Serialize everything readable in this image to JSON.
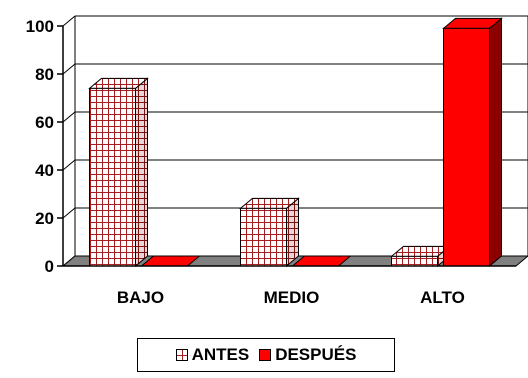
{
  "chart_data": {
    "type": "bar",
    "categories": [
      "BAJO",
      "MEDIO",
      "ALTO"
    ],
    "series": [
      {
        "name": "ANTES",
        "values": [
          74,
          24,
          4
        ],
        "color": "#ffffff",
        "pattern": "grid",
        "pattern_color": "#a81e1e"
      },
      {
        "name": "DESPUÉS",
        "values": [
          0,
          0,
          99
        ],
        "color": "#ff0000",
        "side_color": "#8b0000"
      }
    ],
    "yticks": [
      "0",
      "20",
      "40",
      "60",
      "80",
      "100"
    ],
    "ylim": [
      0,
      100
    ],
    "grid": true,
    "legend_position": "bottom",
    "floor_color": "#808080"
  }
}
